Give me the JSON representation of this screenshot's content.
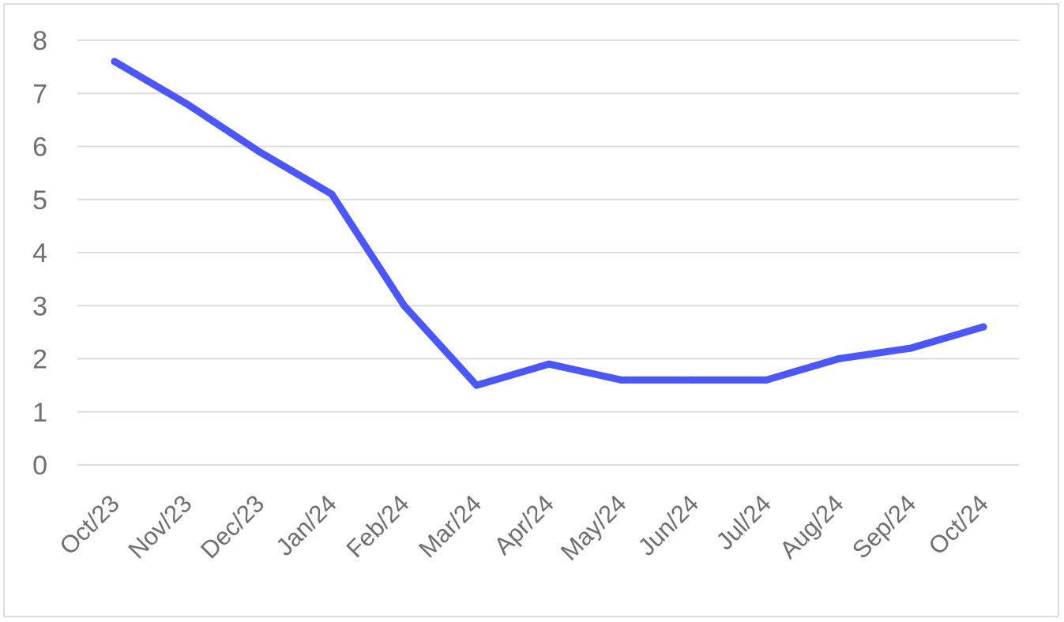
{
  "chart_data": {
    "type": "line",
    "title": "",
    "xlabel": "",
    "ylabel": "",
    "categories": [
      "Oct/23",
      "Nov/23",
      "Dec/23",
      "Jan/24",
      "Feb/24",
      "Mar/24",
      "Apr/24",
      "May/24",
      "Jun/24",
      "Jul/24",
      "Aug/24",
      "Sep/24",
      "Oct/24"
    ],
    "series": [
      {
        "values": [
          7.6,
          6.8,
          5.9,
          5.1,
          3.0,
          1.5,
          1.9,
          1.6,
          1.6,
          1.6,
          2.0,
          2.2,
          2.6
        ],
        "color": "#4b57fb"
      }
    ],
    "ylim": [
      0,
      8
    ],
    "yticks": [
      "0",
      "1",
      "2",
      "3",
      "4",
      "5",
      "6",
      "7",
      "8"
    ],
    "grid": true,
    "legend": "none",
    "colors": {
      "line": "#4b57fb",
      "grid": "#dedde3",
      "tick_text": "#6e6e73",
      "frame": "#dcdce0"
    }
  }
}
